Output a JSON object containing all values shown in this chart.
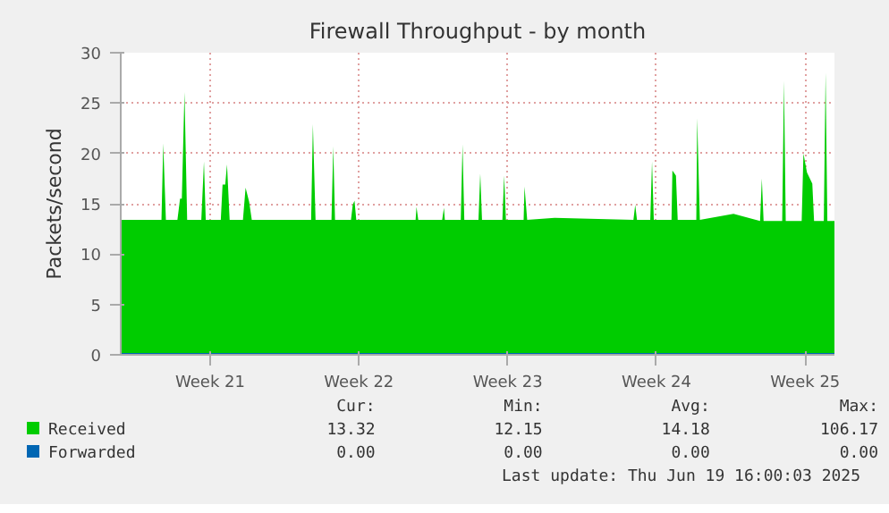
{
  "chart_data": {
    "type": "area",
    "title": "Firewall Throughput - by month",
    "ylabel": "Packets/second",
    "xlim": [
      "2025-05-14T19:00",
      "2025-06-17T09:00"
    ],
    "xticks": [
      {
        "value": "2025-05-19",
        "label": "Week 21"
      },
      {
        "value": "2025-05-26",
        "label": "Week 22"
      },
      {
        "value": "2025-06-02",
        "label": "Week 23"
      },
      {
        "value": "2025-06-09",
        "label": "Week 24"
      },
      {
        "value": "2025-06-16",
        "label": "Week 25"
      }
    ],
    "ylim": [
      0,
      30
    ],
    "yticks": [
      0,
      5,
      10,
      15,
      20,
      25,
      30
    ],
    "grid": true,
    "legend": "bottom",
    "series": [
      {
        "name": "Received",
        "color": "#00cc00",
        "x": [
          "2025-05-14T19:00",
          "2025-05-16T17:00",
          "2025-05-16T19:00",
          "2025-05-16T22:00",
          "2025-05-17T11:00",
          "2025-05-17T14:00",
          "2025-05-17T16:00",
          "2025-05-17T19:00",
          "2025-05-17T22:00",
          "2025-05-18T14:00",
          "2025-05-18T17:00",
          "2025-05-18T19:00",
          "2025-05-19T12:00",
          "2025-05-19T14:00",
          "2025-05-19T17:00",
          "2025-05-19T19:00",
          "2025-05-19T22:00",
          "2025-05-20T13:00",
          "2025-05-20T16:00",
          "2025-05-20T20:00",
          "2025-05-20T23:00",
          "2025-05-23T18:00",
          "2025-05-23T20:00",
          "2025-05-23T23:00",
          "2025-05-24T17:00",
          "2025-05-24T19:00",
          "2025-05-24T21:00",
          "2025-05-25T15:00",
          "2025-05-25T17:00",
          "2025-05-25T19:00",
          "2025-05-25T21:00",
          "2025-05-28T16:00",
          "2025-05-28T17:00",
          "2025-05-28T19:00",
          "2025-05-29T22:00",
          "2025-05-30T00:00",
          "2025-05-30T01:00",
          "2025-05-30T19:00",
          "2025-05-30T21:00",
          "2025-05-30T23:00",
          "2025-05-31T15:00",
          "2025-05-31T17:00",
          "2025-05-31T19:00",
          "2025-06-01T18:00",
          "2025-06-01T20:00",
          "2025-06-01T22:00",
          "2025-06-02T18:00",
          "2025-06-02T19:00",
          "2025-06-02T22:00",
          "2025-06-04T05:00",
          "2025-06-07T22:00",
          "2025-06-08T00:00",
          "2025-06-08T02:00",
          "2025-06-08T17:00",
          "2025-06-08T19:00",
          "2025-06-08T21:00",
          "2025-06-09T17:00",
          "2025-06-09T18:00",
          "2025-06-09T22:00",
          "2025-06-10T00:00",
          "2025-06-10T21:00",
          "2025-06-10T22:00",
          "2025-06-11T01:00",
          "2025-06-12T15:00",
          "2025-06-13T21:00",
          "2025-06-13T23:00",
          "2025-06-14T01:00",
          "2025-06-14T22:00",
          "2025-06-15T00:00",
          "2025-06-15T02:00",
          "2025-06-15T20:00",
          "2025-06-15T22:00",
          "2025-06-16T02:00",
          "2025-06-16T08:00",
          "2025-06-16T10:00",
          "2025-06-16T21:00",
          "2025-06-16T23:00",
          "2025-06-17T01:00",
          "2025-06-17T09:00"
        ],
        "values": [
          13.4,
          13.4,
          21.0,
          13.4,
          13.4,
          15.5,
          15.5,
          26.1,
          13.4,
          13.4,
          19.2,
          13.4,
          13.4,
          16.9,
          16.9,
          18.9,
          13.4,
          13.4,
          16.6,
          15.2,
          13.4,
          13.4,
          22.9,
          13.4,
          13.4,
          20.7,
          13.4,
          13.4,
          14.9,
          15.3,
          13.4,
          13.4,
          14.7,
          13.4,
          13.4,
          14.6,
          13.4,
          13.4,
          20.9,
          13.4,
          13.4,
          18.0,
          13.4,
          13.4,
          17.8,
          13.4,
          13.4,
          16.7,
          13.4,
          13.6,
          13.4,
          14.9,
          13.4,
          13.4,
          19.2,
          13.4,
          13.4,
          18.3,
          17.8,
          13.4,
          13.4,
          23.5,
          13.4,
          14.0,
          13.3,
          17.5,
          13.3,
          13.3,
          27.2,
          13.3,
          13.3,
          20.0,
          18.1,
          17.0,
          13.3,
          13.3,
          28.0,
          13.3,
          13.3
        ]
      },
      {
        "name": "Forwarded",
        "color": "#0066b3",
        "type": "line",
        "x": [
          "2025-05-14T19:00",
          "2025-06-17T09:00"
        ],
        "values": [
          0,
          0
        ]
      }
    ],
    "annotations": [
      "Cur:",
      "Min:",
      "Avg:",
      "Max:",
      "13.32",
      "12.15",
      "14.18",
      "106.17",
      "0.00",
      "0.00",
      "0.00",
      "0.00",
      "Last update: Thu Jun 19 16:00:03 2025"
    ]
  }
}
